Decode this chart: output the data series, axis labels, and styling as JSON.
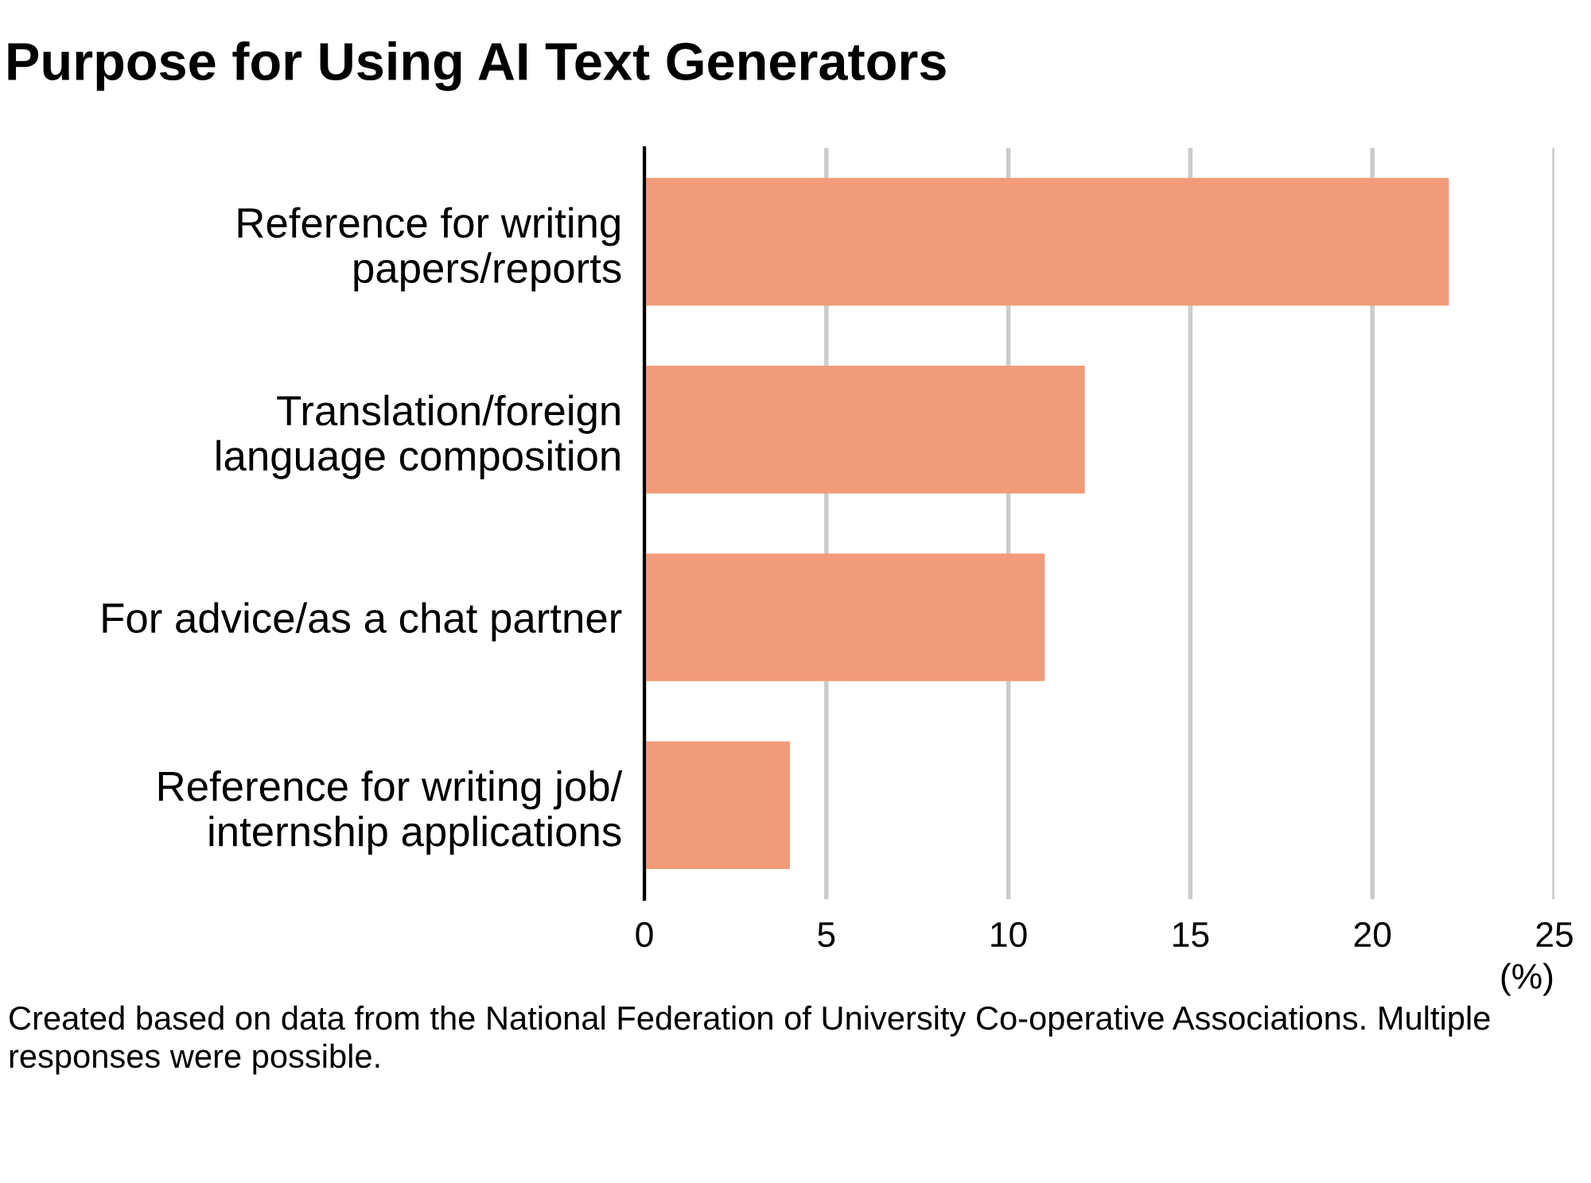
{
  "chart_data": {
    "type": "bar",
    "orientation": "horizontal",
    "title": "Purpose for Using AI Text Generators",
    "categories": [
      "Reference for writing\npapers/reports",
      "Translation/foreign\nlanguage composition",
      "For advice/as a chat partner",
      "Reference for writing job/\ninternship applications"
    ],
    "values": [
      22.1,
      12.1,
      11.0,
      4.0
    ],
    "color": "#f29b7b",
    "xlim": [
      0,
      25
    ],
    "xticks": [
      0,
      5,
      10,
      15,
      20,
      25
    ],
    "xlabel": "(%)",
    "grid": "x",
    "annotations": [
      "Created based on data from the National Federation of University Co-operative Associations. Multiple responses were possible."
    ]
  }
}
